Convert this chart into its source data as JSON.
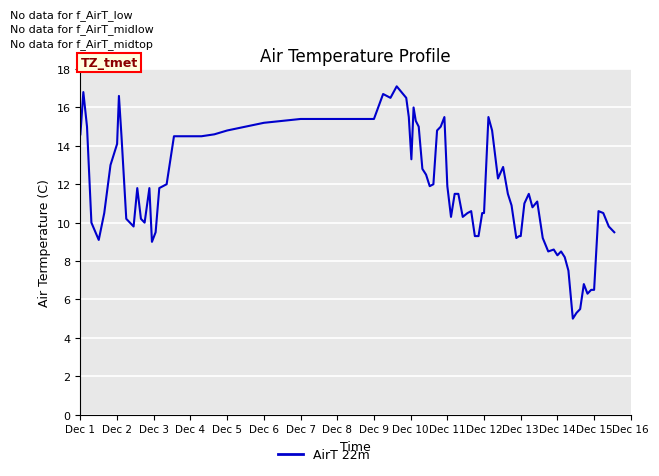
{
  "title": "Air Temperature Profile",
  "xlabel": "Time",
  "ylabel": "Air Termperature (C)",
  "legend_label": "AirT 22m",
  "line_color": "#0000cc",
  "line_width": 1.5,
  "ylim": [
    0,
    18
  ],
  "yticks": [
    0,
    2,
    4,
    6,
    8,
    10,
    12,
    14,
    16,
    18
  ],
  "annotations": [
    "No data for f_AirT_low",
    "No data for f_AirT_midlow",
    "No data for f_AirT_midtop"
  ],
  "legend_box_text": "TZ_tmet",
  "plot_bg_color": "#e8e8e8",
  "xtick_labels": [
    "Dec 1",
    "Dec 2",
    "Dec 3",
    "Dec 4",
    "Dec 5",
    "Dec 6",
    "Dec 7",
    "Dec 8",
    "Dec 9",
    "Dec 10",
    "Dec 11",
    "Dec 12",
    "Dec 13",
    "Dec 14",
    "Dec 15",
    "Dec 16"
  ],
  "x_values": [
    1.0,
    1.08,
    1.18,
    1.3,
    1.5,
    1.65,
    1.82,
    2.0,
    2.05,
    2.12,
    2.25,
    2.45,
    2.55,
    2.65,
    2.75,
    2.88,
    2.95,
    3.05,
    3.15,
    3.35,
    3.55,
    3.72,
    3.88,
    3.97,
    4.0,
    4.05,
    4.3,
    4.65,
    5.0,
    5.5,
    6.0,
    6.5,
    7.0,
    7.5,
    8.0,
    8.5,
    9.0,
    9.25,
    9.45,
    9.62,
    9.75,
    9.88,
    9.95,
    10.02,
    10.08,
    10.14,
    10.22,
    10.32,
    10.42,
    10.52,
    10.62,
    10.72,
    10.82,
    10.92,
    11.0,
    11.1,
    11.2,
    11.3,
    11.42,
    11.55,
    11.65,
    11.75,
    11.85,
    11.95,
    12.0,
    12.12,
    12.22,
    12.38,
    12.52,
    12.65,
    12.75,
    12.88,
    12.96,
    13.0,
    13.1,
    13.22,
    13.32,
    13.45,
    13.6,
    13.75,
    13.9,
    14.0,
    14.1,
    14.2,
    14.3,
    14.42,
    14.52,
    14.62,
    14.72,
    14.82,
    14.92,
    15.0,
    15.12,
    15.25,
    15.4,
    15.55
  ],
  "y_values": [
    14.6,
    16.8,
    15.0,
    10.0,
    9.1,
    10.5,
    13.0,
    14.1,
    16.6,
    14.5,
    10.2,
    9.8,
    11.8,
    10.2,
    10.0,
    11.8,
    9.0,
    9.5,
    11.8,
    12.0,
    14.5,
    14.5,
    14.5,
    14.5,
    14.5,
    14.5,
    14.5,
    14.6,
    14.8,
    15.0,
    15.2,
    15.3,
    15.4,
    15.4,
    15.4,
    15.4,
    15.4,
    16.7,
    16.5,
    17.1,
    16.8,
    16.5,
    15.5,
    13.3,
    16.0,
    15.3,
    15.0,
    12.8,
    12.5,
    11.9,
    12.0,
    14.8,
    15.0,
    15.5,
    11.9,
    10.3,
    11.5,
    11.5,
    10.3,
    10.5,
    10.6,
    9.3,
    9.3,
    10.5,
    10.5,
    15.5,
    14.8,
    12.3,
    12.9,
    11.5,
    10.9,
    9.2,
    9.3,
    9.3,
    11.0,
    11.5,
    10.8,
    11.1,
    9.2,
    8.5,
    8.6,
    8.3,
    8.5,
    8.2,
    7.5,
    5.0,
    5.3,
    5.5,
    6.8,
    6.3,
    6.5,
    6.5,
    10.6,
    10.5,
    9.8,
    9.5
  ]
}
